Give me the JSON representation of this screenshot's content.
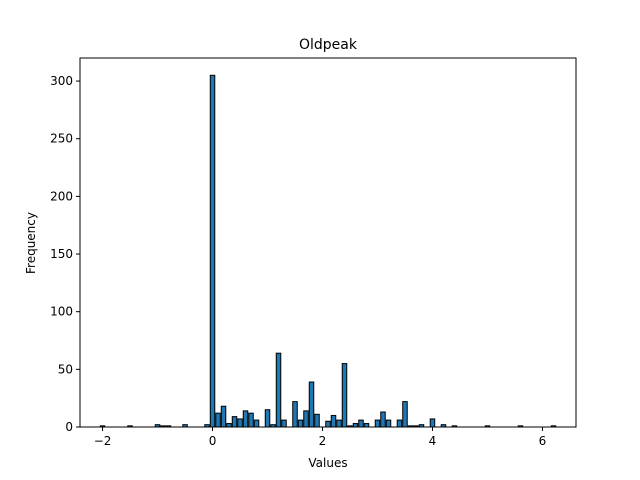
{
  "chart_data": {
    "type": "bar",
    "subtype": "histogram",
    "title": "Oldpeak",
    "xlabel": "Values",
    "ylabel": "Frequency",
    "xlim": [
      -2.41,
      6.61
    ],
    "ylim": [
      0,
      320
    ],
    "xticks": [
      -2,
      0,
      2,
      4,
      6
    ],
    "yticks": [
      0,
      50,
      100,
      150,
      200,
      250,
      300
    ],
    "grid": false,
    "bar_color": "#1f77b4",
    "edge_color": "#000000",
    "bin_width": 0.082,
    "bins": [
      {
        "x": -2.0,
        "count": 1
      },
      {
        "x": -1.5,
        "count": 1
      },
      {
        "x": -1.0,
        "count": 2
      },
      {
        "x": -0.9,
        "count": 1
      },
      {
        "x": -0.8,
        "count": 1
      },
      {
        "x": -0.5,
        "count": 2
      },
      {
        "x": -0.1,
        "count": 2
      },
      {
        "x": 0.0,
        "count": 305
      },
      {
        "x": 0.1,
        "count": 12
      },
      {
        "x": 0.2,
        "count": 18
      },
      {
        "x": 0.3,
        "count": 3
      },
      {
        "x": 0.4,
        "count": 9
      },
      {
        "x": 0.5,
        "count": 7
      },
      {
        "x": 0.6,
        "count": 14
      },
      {
        "x": 0.7,
        "count": 12
      },
      {
        "x": 0.8,
        "count": 6
      },
      {
        "x": 1.0,
        "count": 15
      },
      {
        "x": 1.1,
        "count": 2
      },
      {
        "x": 1.2,
        "count": 64
      },
      {
        "x": 1.3,
        "count": 6
      },
      {
        "x": 1.5,
        "count": 22
      },
      {
        "x": 1.6,
        "count": 6
      },
      {
        "x": 1.7,
        "count": 14
      },
      {
        "x": 1.8,
        "count": 39
      },
      {
        "x": 1.9,
        "count": 11
      },
      {
        "x": 2.1,
        "count": 5
      },
      {
        "x": 2.2,
        "count": 10
      },
      {
        "x": 2.3,
        "count": 6
      },
      {
        "x": 2.4,
        "count": 55
      },
      {
        "x": 2.5,
        "count": 1
      },
      {
        "x": 2.6,
        "count": 3
      },
      {
        "x": 2.7,
        "count": 6
      },
      {
        "x": 2.8,
        "count": 3
      },
      {
        "x": 3.0,
        "count": 6
      },
      {
        "x": 3.1,
        "count": 13
      },
      {
        "x": 3.2,
        "count": 6
      },
      {
        "x": 3.4,
        "count": 6
      },
      {
        "x": 3.5,
        "count": 22
      },
      {
        "x": 3.6,
        "count": 1
      },
      {
        "x": 3.7,
        "count": 1
      },
      {
        "x": 3.8,
        "count": 2
      },
      {
        "x": 4.0,
        "count": 7
      },
      {
        "x": 4.2,
        "count": 2
      },
      {
        "x": 4.4,
        "count": 1
      },
      {
        "x": 5.0,
        "count": 1
      },
      {
        "x": 5.6,
        "count": 1
      },
      {
        "x": 6.2,
        "count": 1
      }
    ]
  }
}
